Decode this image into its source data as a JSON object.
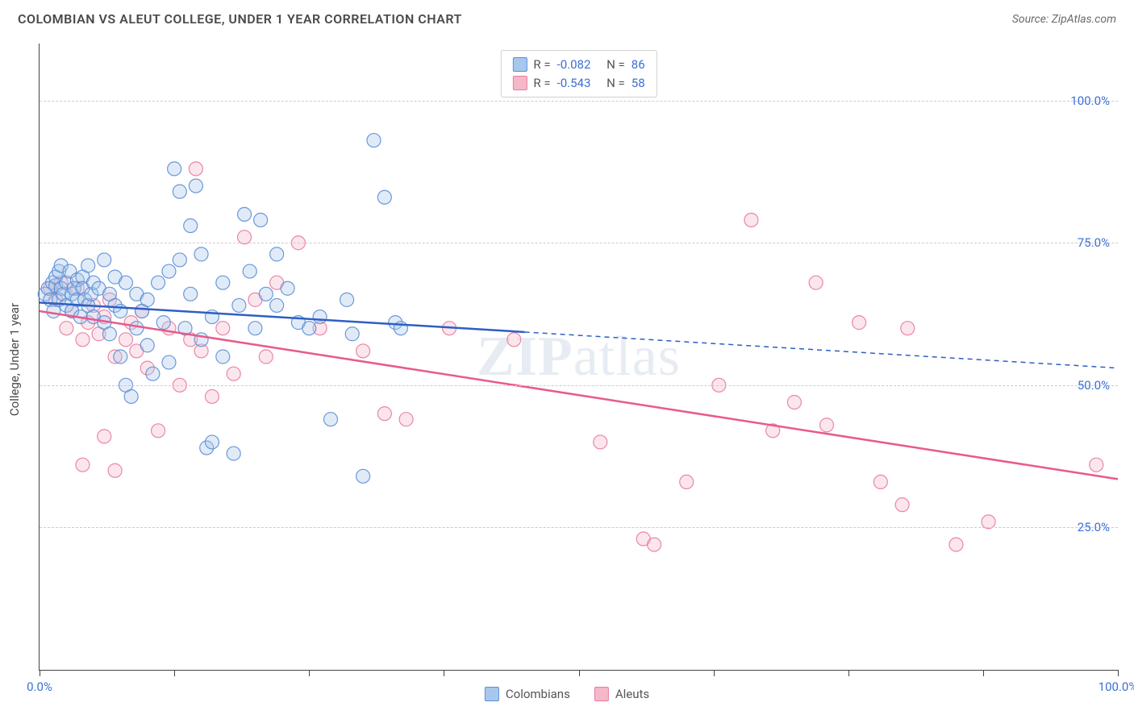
{
  "header": {
    "title": "COLOMBIAN VS ALEUT COLLEGE, UNDER 1 YEAR CORRELATION CHART",
    "source_label": "Source: ",
    "source_name": "ZipAtlas.com"
  },
  "chart": {
    "type": "scatter",
    "ylabel": "College, Under 1 year",
    "background_color": "#ffffff",
    "grid_color": "#cccccc",
    "xlim": [
      0,
      100
    ],
    "ylim": [
      0,
      110
    ],
    "xtick_positions": [
      0,
      12.5,
      25,
      37.5,
      50,
      62.5,
      75,
      87.5,
      100
    ],
    "xtick_labels": {
      "0": "0.0%",
      "100": "100.0%"
    },
    "xtick_label_color": "#3b6fd4",
    "ytick_positions": [
      25,
      50,
      75,
      100
    ],
    "ytick_labels": {
      "25": "25.0%",
      "50": "50.0%",
      "75": "75.0%",
      "100": "100.0%"
    },
    "ytick_label_color": "#3b6fd4",
    "marker_radius": 8.5,
    "marker_fill_opacity": 0.35,
    "marker_stroke_opacity": 0.9,
    "marker_stroke_width": 1.2,
    "watermark_text_bold": "ZIP",
    "watermark_text_rest": "atlas"
  },
  "series": {
    "colombians": {
      "label": "Colombians",
      "fill": "#a8c7ec",
      "stroke": "#5a8fd6",
      "R": "-0.082",
      "N": "86",
      "trend": {
        "y_at_x0": 64.5,
        "y_at_x100": 53.0,
        "solid_until_x": 45
      },
      "points": [
        [
          0.5,
          66
        ],
        [
          0.8,
          67
        ],
        [
          1.0,
          65
        ],
        [
          1.2,
          68
        ],
        [
          1.3,
          63
        ],
        [
          1.5,
          67.5
        ],
        [
          1.5,
          69
        ],
        [
          1.8,
          65
        ],
        [
          1.8,
          70
        ],
        [
          2.0,
          71
        ],
        [
          2.0,
          67
        ],
        [
          2.2,
          66
        ],
        [
          2.5,
          68
        ],
        [
          2.5,
          64
        ],
        [
          2.8,
          70
        ],
        [
          3.0,
          66
        ],
        [
          3.0,
          63
        ],
        [
          3.2,
          67
        ],
        [
          3.5,
          68.5
        ],
        [
          3.5,
          65
        ],
        [
          3.8,
          62
        ],
        [
          4.0,
          69
        ],
        [
          4.0,
          67
        ],
        [
          4.2,
          65
        ],
        [
          4.5,
          64
        ],
        [
          4.5,
          71
        ],
        [
          4.8,
          66
        ],
        [
          5.0,
          68
        ],
        [
          5.0,
          62
        ],
        [
          5.5,
          67
        ],
        [
          6.0,
          72
        ],
        [
          6.0,
          61
        ],
        [
          6.5,
          66
        ],
        [
          6.5,
          59
        ],
        [
          7.0,
          64
        ],
        [
          7.0,
          69
        ],
        [
          7.5,
          63
        ],
        [
          7.5,
          55
        ],
        [
          8.0,
          50
        ],
        [
          8.0,
          68
        ],
        [
          8.5,
          48
        ],
        [
          9.0,
          66
        ],
        [
          9.0,
          60
        ],
        [
          9.5,
          63
        ],
        [
          10.0,
          57
        ],
        [
          10.0,
          65
        ],
        [
          10.5,
          52
        ],
        [
          11.0,
          68
        ],
        [
          11.5,
          61
        ],
        [
          12.0,
          70
        ],
        [
          12.0,
          54
        ],
        [
          12.5,
          88
        ],
        [
          13.0,
          72
        ],
        [
          13.0,
          84
        ],
        [
          13.5,
          60
        ],
        [
          14.0,
          66
        ],
        [
          14.0,
          78
        ],
        [
          14.5,
          85
        ],
        [
          15.0,
          73
        ],
        [
          15.0,
          58
        ],
        [
          15.5,
          39
        ],
        [
          16.0,
          62
        ],
        [
          16.0,
          40
        ],
        [
          17.0,
          68
        ],
        [
          17.0,
          55
        ],
        [
          18.0,
          38
        ],
        [
          18.5,
          64
        ],
        [
          19.0,
          80
        ],
        [
          19.5,
          70
        ],
        [
          20.0,
          60
        ],
        [
          20.5,
          79
        ],
        [
          21.0,
          66
        ],
        [
          22.0,
          64
        ],
        [
          22.0,
          73
        ],
        [
          23.0,
          67
        ],
        [
          24.0,
          61
        ],
        [
          25.0,
          60
        ],
        [
          26.0,
          62
        ],
        [
          27.0,
          44
        ],
        [
          28.5,
          65
        ],
        [
          29.0,
          59
        ],
        [
          30.0,
          34
        ],
        [
          31.0,
          93
        ],
        [
          32.0,
          83
        ],
        [
          33.0,
          61
        ],
        [
          33.5,
          60
        ]
      ]
    },
    "aleuts": {
      "label": "Aleuts",
      "fill": "#f4b8c9",
      "stroke": "#e97aa1",
      "R": "-0.543",
      "N": "58",
      "trend": {
        "y_at_x0": 63.0,
        "y_at_x100": 33.5,
        "solid_until_x": 100
      },
      "points": [
        [
          1.0,
          67
        ],
        [
          1.5,
          65
        ],
        [
          2.0,
          68
        ],
        [
          2.5,
          60
        ],
        [
          3.0,
          63
        ],
        [
          3.5,
          67
        ],
        [
          4.0,
          58
        ],
        [
          4.0,
          36
        ],
        [
          4.5,
          61
        ],
        [
          5.0,
          64
        ],
        [
          5.5,
          59
        ],
        [
          6.0,
          62
        ],
        [
          6.0,
          41
        ],
        [
          6.5,
          65
        ],
        [
          7.0,
          55
        ],
        [
          7.0,
          35
        ],
        [
          8.0,
          58
        ],
        [
          8.5,
          61
        ],
        [
          9.0,
          56
        ],
        [
          9.5,
          63
        ],
        [
          10.0,
          53
        ],
        [
          11.0,
          42
        ],
        [
          12.0,
          60
        ],
        [
          13.0,
          50
        ],
        [
          14.0,
          58
        ],
        [
          14.5,
          88
        ],
        [
          15.0,
          56
        ],
        [
          16.0,
          48
        ],
        [
          17.0,
          60
        ],
        [
          18.0,
          52
        ],
        [
          19.0,
          76
        ],
        [
          20.0,
          65
        ],
        [
          21.0,
          55
        ],
        [
          22.0,
          68
        ],
        [
          24.0,
          75
        ],
        [
          26.0,
          60
        ],
        [
          30.0,
          56
        ],
        [
          32.0,
          45
        ],
        [
          34.0,
          44
        ],
        [
          38.0,
          60
        ],
        [
          44.0,
          58
        ],
        [
          52.0,
          40
        ],
        [
          56.0,
          23
        ],
        [
          57.0,
          22
        ],
        [
          60.0,
          33
        ],
        [
          63.0,
          50
        ],
        [
          66.0,
          79
        ],
        [
          68.0,
          42
        ],
        [
          70.0,
          47
        ],
        [
          72.0,
          68
        ],
        [
          73.0,
          43
        ],
        [
          76.0,
          61
        ],
        [
          78.0,
          33
        ],
        [
          80.0,
          29
        ],
        [
          80.5,
          60
        ],
        [
          85.0,
          22
        ],
        [
          88.0,
          26
        ],
        [
          98.0,
          36
        ]
      ]
    }
  },
  "legend_top": {
    "R_label": "R =",
    "N_label": "N =",
    "value_color": "#3b6fd4"
  },
  "legend_bottom": {
    "items": [
      "colombians",
      "aleuts"
    ]
  }
}
